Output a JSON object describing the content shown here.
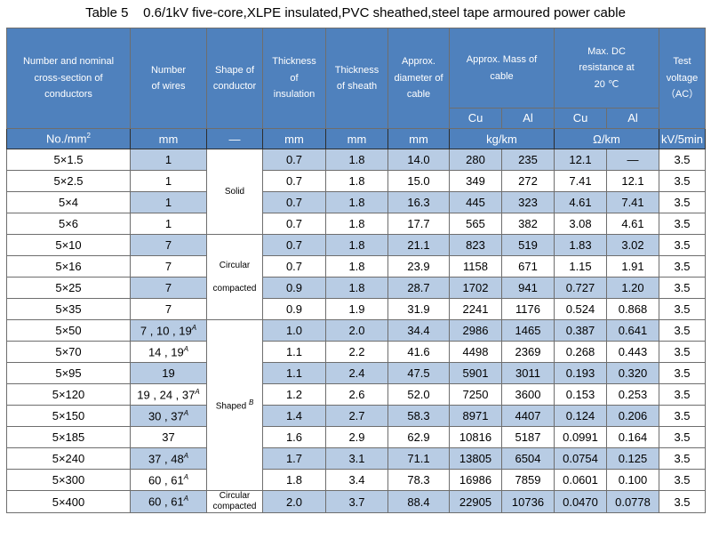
{
  "title": "Table 5    0.6/1kV five-core,XLPE insulated,PVC sheathed,steel tape armoured power cable",
  "headers": {
    "col1": "Number and nominal cross-section of conductors",
    "col2": "Number of wires",
    "col3": "Shape of conductor",
    "col4": "Thickness of insulation",
    "col5": "Thickness of sheath",
    "col6": "Approx. diameter of cable",
    "col7": "Approx. Mass of cable",
    "col8": "Max. DC resistance at 20 ℃",
    "col9": "Test voltage （AC）",
    "cu": "Cu",
    "al": "Al"
  },
  "units": {
    "size": "No./mm",
    "size_sup": "2",
    "wires": "mm",
    "shape": "—",
    "insulation": "mm",
    "sheath": "mm",
    "diameter": "mm",
    "mass": "kg/km",
    "resistance": "Ω/km",
    "voltage": "kV/5min"
  },
  "shapes": {
    "solid": "Solid",
    "circular_1": "Circular",
    "circular_2": "compacted",
    "shaped": "Shaped",
    "shaped_sup": "B",
    "last_1": "Circular",
    "last_2": "compacted"
  },
  "rows": [
    {
      "size": "5×1.5",
      "wires": "1",
      "sup": "",
      "ins": "0.7",
      "sheath": "1.8",
      "dia": "14.0",
      "cu": "280",
      "al": "235",
      "rcu": "12.1",
      "ral": "—",
      "v": "3.5"
    },
    {
      "size": "5×2.5",
      "wires": "1",
      "sup": "",
      "ins": "0.7",
      "sheath": "1.8",
      "dia": "15.0",
      "cu": "349",
      "al": "272",
      "rcu": "7.41",
      "ral": "12.1",
      "v": "3.5"
    },
    {
      "size": "5×4",
      "wires": "1",
      "sup": "",
      "ins": "0.7",
      "sheath": "1.8",
      "dia": "16.3",
      "cu": "445",
      "al": "323",
      "rcu": "4.61",
      "ral": "7.41",
      "v": "3.5"
    },
    {
      "size": "5×6",
      "wires": "1",
      "sup": "",
      "ins": "0.7",
      "sheath": "1.8",
      "dia": "17.7",
      "cu": "565",
      "al": "382",
      "rcu": "3.08",
      "ral": "4.61",
      "v": "3.5"
    },
    {
      "size": "5×10",
      "wires": "7",
      "sup": "",
      "ins": "0.7",
      "sheath": "1.8",
      "dia": "21.1",
      "cu": "823",
      "al": "519",
      "rcu": "1.83",
      "ral": "3.02",
      "v": "3.5"
    },
    {
      "size": "5×16",
      "wires": "7",
      "sup": "",
      "ins": "0.7",
      "sheath": "1.8",
      "dia": "23.9",
      "cu": "1158",
      "al": "671",
      "rcu": "1.15",
      "ral": "1.91",
      "v": "3.5"
    },
    {
      "size": "5×25",
      "wires": "7",
      "sup": "",
      "ins": "0.9",
      "sheath": "1.8",
      "dia": "28.7",
      "cu": "1702",
      "al": "941",
      "rcu": "0.727",
      "ral": "1.20",
      "v": "3.5"
    },
    {
      "size": "5×35",
      "wires": "7",
      "sup": "",
      "ins": "0.9",
      "sheath": "1.9",
      "dia": "31.9",
      "cu": "2241",
      "al": "1176",
      "rcu": "0.524",
      "ral": "0.868",
      "v": "3.5"
    },
    {
      "size": "5×50",
      "wires": "7 , 10 , 19",
      "sup": "A",
      "ins": "1.0",
      "sheath": "2.0",
      "dia": "34.4",
      "cu": "2986",
      "al": "1465",
      "rcu": "0.387",
      "ral": "0.641",
      "v": "3.5"
    },
    {
      "size": "5×70",
      "wires": "14 , 19",
      "sup": "A",
      "ins": "1.1",
      "sheath": "2.2",
      "dia": "41.6",
      "cu": "4498",
      "al": "2369",
      "rcu": "0.268",
      "ral": "0.443",
      "v": "3.5"
    },
    {
      "size": "5×95",
      "wires": "19",
      "sup": "",
      "ins": "1.1",
      "sheath": "2.4",
      "dia": "47.5",
      "cu": "5901",
      "al": "3011",
      "rcu": "0.193",
      "ral": "0.320",
      "v": "3.5"
    },
    {
      "size": "5×120",
      "wires": "19 , 24 , 37",
      "sup": "A",
      "ins": "1.2",
      "sheath": "2.6",
      "dia": "52.0",
      "cu": "7250",
      "al": "3600",
      "rcu": "0.153",
      "ral": "0.253",
      "v": "3.5"
    },
    {
      "size": "5×150",
      "wires": "30 , 37",
      "sup": "A",
      "ins": "1.4",
      "sheath": "2.7",
      "dia": "58.3",
      "cu": "8971",
      "al": "4407",
      "rcu": "0.124",
      "ral": "0.206",
      "v": "3.5"
    },
    {
      "size": "5×185",
      "wires": "37",
      "sup": "",
      "ins": "1.6",
      "sheath": "2.9",
      "dia": "62.9",
      "cu": "10816",
      "al": "5187",
      "rcu": "0.0991",
      "ral": "0.164",
      "v": "3.5"
    },
    {
      "size": "5×240",
      "wires": "37 , 48",
      "sup": "A",
      "ins": "1.7",
      "sheath": "3.1",
      "dia": "71.1",
      "cu": "13805",
      "al": "6504",
      "rcu": "0.0754",
      "ral": "0.125",
      "v": "3.5"
    },
    {
      "size": "5×300",
      "wires": "60 , 61",
      "sup": "A",
      "ins": "1.8",
      "sheath": "3.4",
      "dia": "78.3",
      "cu": "16986",
      "al": "7859",
      "rcu": "0.0601",
      "ral": "0.100",
      "v": "3.5"
    },
    {
      "size": "5×400",
      "wires": "60 , 61",
      "sup": "A",
      "ins": "2.0",
      "sheath": "3.7",
      "dia": "88.4",
      "cu": "22905",
      "al": "10736",
      "rcu": "0.0470",
      "ral": "0.0778",
      "v": "3.5"
    }
  ]
}
